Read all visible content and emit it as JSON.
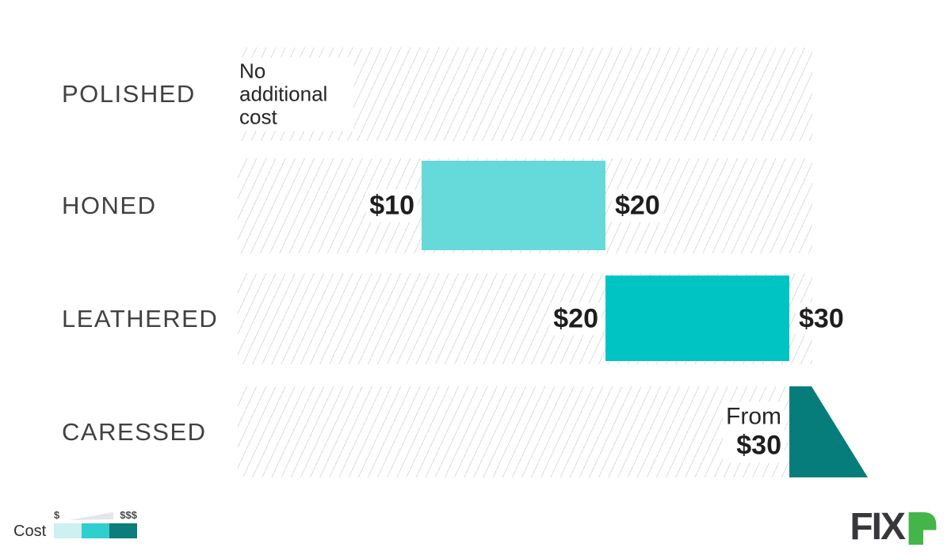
{
  "chart_data": {
    "type": "bar",
    "orientation": "horizontal",
    "title": "",
    "x_axis": {
      "unit": "$",
      "range": [
        0,
        30
      ],
      "visible": false
    },
    "grid": "diagonal-hatch-bands",
    "categories": [
      "POLISHED",
      "HONED",
      "LEATHERED",
      "CARESSED"
    ],
    "bars": [
      {
        "category": "POLISHED",
        "min": 0,
        "max": 0,
        "note": "No additional cost"
      },
      {
        "category": "HONED",
        "min": 10,
        "max": 20,
        "min_label": "$10",
        "max_label": "$20"
      },
      {
        "category": "LEATHERED",
        "min": 20,
        "max": 30,
        "min_label": "$20",
        "max_label": "$30"
      },
      {
        "category": "CARESSED",
        "min": 30,
        "max": null,
        "open_ended": true,
        "label_line1": "From",
        "label_line2": "$30"
      }
    ],
    "legend": {
      "label": "Cost",
      "scale_low": "$",
      "scale_high": "$$$",
      "legend_position": "bottom-left"
    }
  },
  "colors": {
    "bar_honed": "#66dadb",
    "bar_leathered": "#00c4c4",
    "bar_caressed": "#077d7b",
    "hatch_line": "#dcdcdc",
    "swatch_low": "#cdf0f0",
    "swatch_mid": "#2fcfcf",
    "swatch_high": "#0c7c7c",
    "wedge": "#e6e6e6",
    "logo_green": "#44b549",
    "logo_dark": "#38373b"
  },
  "logo": {
    "text": "FIX"
  }
}
